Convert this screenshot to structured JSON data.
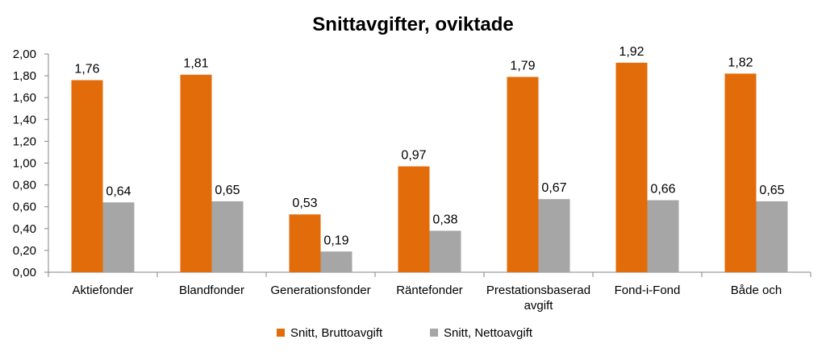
{
  "chart_data": {
    "type": "bar",
    "title": "Snittavgifter, oviktade",
    "xlabel": "",
    "ylabel": "",
    "ylim": [
      0,
      2
    ],
    "yticks": [
      "0,00",
      "0,20",
      "0,40",
      "0,60",
      "0,80",
      "1,00",
      "1,20",
      "1,40",
      "1,60",
      "1,80",
      "2,00"
    ],
    "categories": [
      [
        "Aktiefonder"
      ],
      [
        "Blandfonder"
      ],
      [
        "Generationsfonder"
      ],
      [
        "Räntefonder"
      ],
      [
        "Prestationsbaserad",
        "avgift"
      ],
      [
        "Fond-i-Fond"
      ],
      [
        "Både och"
      ]
    ],
    "series": [
      {
        "name": "Snitt, Bruttoavgift",
        "color": "#E36C0A",
        "values": [
          1.76,
          1.81,
          0.53,
          0.97,
          1.79,
          1.92,
          1.82
        ],
        "labels": [
          "1,76",
          "1,81",
          "0,53",
          "0,97",
          "1,79",
          "1,92",
          "1,82"
        ]
      },
      {
        "name": "Snitt, Nettoavgift",
        "color": "#A6A6A6",
        "values": [
          0.64,
          0.65,
          0.19,
          0.38,
          0.67,
          0.66,
          0.65
        ],
        "labels": [
          "0,64",
          "0,65",
          "0,19",
          "0,38",
          "0,67",
          "0,66",
          "0,65"
        ]
      }
    ],
    "grid": false,
    "legend": "bottom"
  }
}
